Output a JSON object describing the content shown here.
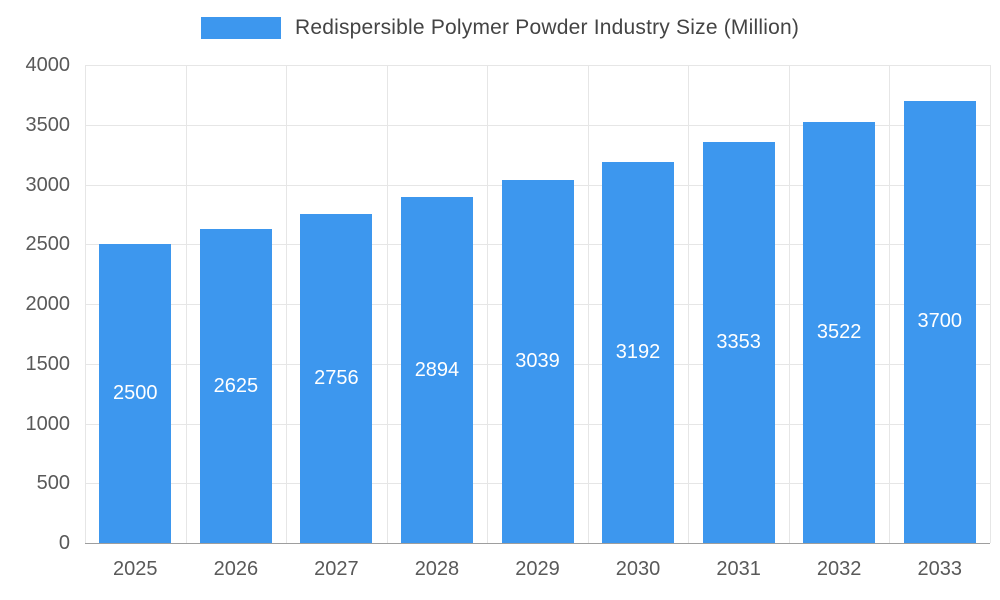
{
  "chart_data": {
    "type": "bar",
    "title": "Redispersible Polymer Powder Industry Size (Million)",
    "categories": [
      "2025",
      "2026",
      "2027",
      "2028",
      "2029",
      "2030",
      "2031",
      "2032",
      "2033"
    ],
    "values": [
      2500,
      2625,
      2756,
      2894,
      3039,
      3192,
      3353,
      3522,
      3700
    ],
    "xlabel": "",
    "ylabel": "",
    "ylim": [
      0,
      4000
    ],
    "yticks": [
      0,
      500,
      1000,
      1500,
      2000,
      2500,
      3000,
      3500,
      4000
    ],
    "bar_color": "#3d97ee",
    "grid": true,
    "legend_position": "top",
    "colors": {
      "bar": "#3d97ee",
      "gridline": "#e6e6e6",
      "baseline": "#9e9e9e",
      "axis_text": "#595959",
      "title_text": "#444444",
      "bar_label_text": "#ffffff",
      "background": "#ffffff"
    }
  }
}
